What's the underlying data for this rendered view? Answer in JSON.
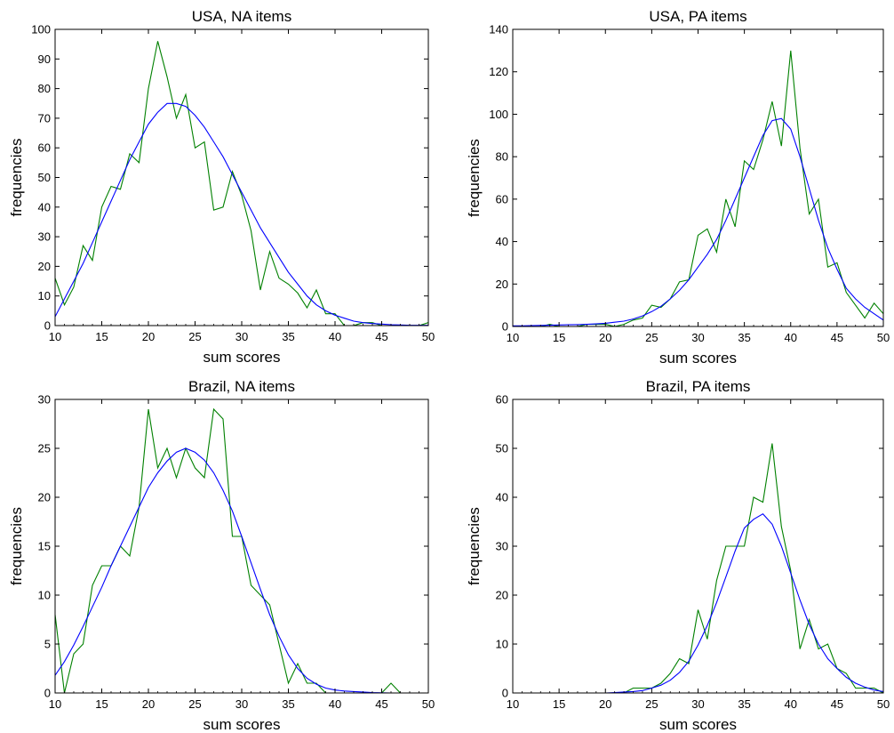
{
  "figure": {
    "chart_data": [
      {
        "type": "line",
        "title": "USA, NA items",
        "xlabel": "sum scores",
        "ylabel": "frequencies",
        "xlim": [
          10,
          50
        ],
        "ylim": [
          0,
          100
        ],
        "xticks": [
          10,
          15,
          20,
          25,
          30,
          35,
          40,
          45,
          50
        ],
        "yticks": [
          0,
          10,
          20,
          30,
          40,
          50,
          60,
          70,
          80,
          90,
          100
        ],
        "x": [
          10,
          11,
          12,
          13,
          14,
          15,
          16,
          17,
          18,
          19,
          20,
          21,
          22,
          23,
          24,
          25,
          26,
          27,
          28,
          29,
          30,
          31,
          32,
          33,
          34,
          35,
          36,
          37,
          38,
          39,
          40,
          41,
          42,
          43,
          44,
          45,
          46,
          47,
          48,
          49,
          50
        ],
        "series": [
          {
            "color": "#008000",
            "values": [
              16,
              7,
              13,
              27,
              22,
              40,
              47,
              46,
              58,
              55,
              80,
              96,
              84,
              70,
              78,
              60,
              62,
              39,
              40,
              52,
              44,
              32,
              12,
              25,
              16,
              14,
              11,
              6,
              12,
              4,
              4,
              0,
              0,
              1,
              1,
              0,
              0,
              0,
              0,
              0,
              1
            ]
          },
          {
            "color": "#0000ff",
            "values": [
              3,
              9,
              15,
              21,
              28,
              35,
              42,
              49,
              56,
              62,
              68,
              72,
              75,
              75,
              74,
              71,
              67,
              62,
              57,
              51,
              45,
              39,
              33,
              28,
              23,
              18,
              14,
              10,
              7,
              5,
              3.5,
              2.5,
              1.5,
              1,
              0.7,
              0.5,
              0.3,
              0.2,
              0.1,
              0.1,
              0.1
            ]
          }
        ]
      },
      {
        "type": "line",
        "title": "USA, PA items",
        "xlabel": "sum scores",
        "ylabel": "frequencies",
        "xlim": [
          10,
          50
        ],
        "ylim": [
          0,
          140
        ],
        "xticks": [
          10,
          15,
          20,
          25,
          30,
          35,
          40,
          45,
          50
        ],
        "yticks": [
          0,
          20,
          40,
          60,
          80,
          100,
          120,
          140
        ],
        "x": [
          10,
          11,
          12,
          13,
          14,
          15,
          16,
          17,
          18,
          19,
          20,
          21,
          22,
          23,
          24,
          25,
          26,
          27,
          28,
          29,
          30,
          31,
          32,
          33,
          34,
          35,
          36,
          37,
          38,
          39,
          40,
          41,
          42,
          43,
          44,
          45,
          46,
          47,
          48,
          49,
          50
        ],
        "series": [
          {
            "color": "#008000",
            "values": [
              0,
              0,
              0,
              0,
              1,
              0,
              0,
              0,
              1,
              1,
              1,
              0,
              1,
              3,
              4,
              10,
              9,
              13,
              21,
              22,
              43,
              46,
              35,
              60,
              47,
              78,
              74,
              88,
              106,
              85,
              130,
              84,
              53,
              60,
              28,
              30,
              16,
              10,
              4,
              11,
              6
            ]
          },
          {
            "color": "#0000ff",
            "values": [
              0.3,
              0.3,
              0.4,
              0.5,
              0.6,
              0.7,
              0.8,
              0.9,
              1,
              1.2,
              1.5,
              2,
              2.5,
              3.5,
              5,
              7,
              9.5,
              13,
              17,
              22,
              28,
              34,
              41,
              50,
              60,
              70,
              80,
              90,
              97,
              98,
              93,
              80,
              65,
              50,
              37,
              27,
              18,
              13,
              9,
              6,
              3
            ]
          }
        ]
      },
      {
        "type": "line",
        "title": "Brazil, NA items",
        "xlabel": "sum scores",
        "ylabel": "frequencies",
        "xlim": [
          10,
          50
        ],
        "ylim": [
          0,
          30
        ],
        "xticks": [
          10,
          15,
          20,
          25,
          30,
          35,
          40,
          45,
          50
        ],
        "yticks": [
          0,
          5,
          10,
          15,
          20,
          25,
          30
        ],
        "x": [
          10,
          11,
          12,
          13,
          14,
          15,
          16,
          17,
          18,
          19,
          20,
          21,
          22,
          23,
          24,
          25,
          26,
          27,
          28,
          29,
          30,
          31,
          32,
          33,
          34,
          35,
          36,
          37,
          38,
          39,
          40,
          41,
          42,
          43,
          44,
          45,
          46,
          47,
          48,
          49,
          50
        ],
        "series": [
          {
            "color": "#008000",
            "values": [
              8,
              0,
              4,
              5,
              11,
              13,
              13,
              15,
              14,
              19,
              29,
              23,
              25,
              22,
              25,
              23,
              22,
              29,
              28,
              16,
              16,
              11,
              10,
              9,
              5,
              1,
              3,
              1,
              1,
              0,
              0,
              0,
              0,
              0,
              0,
              0,
              1,
              0,
              0,
              0,
              0
            ]
          },
          {
            "color": "#0000ff",
            "values": [
              1.8,
              3.2,
              4.9,
              6.8,
              8.8,
              10.8,
              13,
              15,
              17,
              19,
              21,
              22.5,
              23.7,
              24.6,
              25,
              24.6,
              23.8,
              22.5,
              20.7,
              18.6,
              16,
              13.3,
              10.6,
              8,
              5.8,
              3.9,
              2.5,
              1.5,
              0.9,
              0.5,
              0.3,
              0.2,
              0.15,
              0.1,
              0.05,
              0.02,
              0,
              0,
              0,
              0,
              0
            ]
          }
        ]
      },
      {
        "type": "line",
        "title": "Brazil, PA items",
        "xlabel": "sum scores",
        "ylabel": "frequencies",
        "xlim": [
          10,
          50
        ],
        "ylim": [
          0,
          60
        ],
        "xticks": [
          10,
          15,
          20,
          25,
          30,
          35,
          40,
          45,
          50
        ],
        "yticks": [
          0,
          10,
          20,
          30,
          40,
          50,
          60
        ],
        "x": [
          10,
          11,
          12,
          13,
          14,
          15,
          16,
          17,
          18,
          19,
          20,
          21,
          22,
          23,
          24,
          25,
          26,
          27,
          28,
          29,
          30,
          31,
          32,
          33,
          34,
          35,
          36,
          37,
          38,
          39,
          40,
          41,
          42,
          43,
          44,
          45,
          46,
          47,
          48,
          49,
          50
        ],
        "series": [
          {
            "color": "#008000",
            "values": [
              0,
              0,
              0,
              0,
              0,
              0,
              0,
              0,
              0,
              0,
              0,
              0,
              0,
              1,
              1,
              1,
              2,
              4,
              7,
              6,
              17,
              11,
              23,
              30,
              30,
              30,
              40,
              39,
              51,
              34,
              25,
              9,
              15,
              9,
              10,
              5,
              4,
              1,
              1,
              1,
              0
            ]
          },
          {
            "color": "#0000ff",
            "values": [
              0,
              0,
              0,
              0,
              0,
              0,
              0,
              0,
              0,
              0,
              0,
              0.1,
              0.2,
              0.3,
              0.5,
              1,
              1.6,
              2.6,
              4.2,
              6.5,
              9.8,
              13.8,
              18.5,
              23.7,
              29,
              33.7,
              35.5,
              36.6,
              34.5,
              30,
              24.5,
              19,
              14,
              10,
              7,
              5,
              3.2,
              2,
              1.2,
              0.6,
              0.3
            ]
          }
        ]
      }
    ]
  }
}
